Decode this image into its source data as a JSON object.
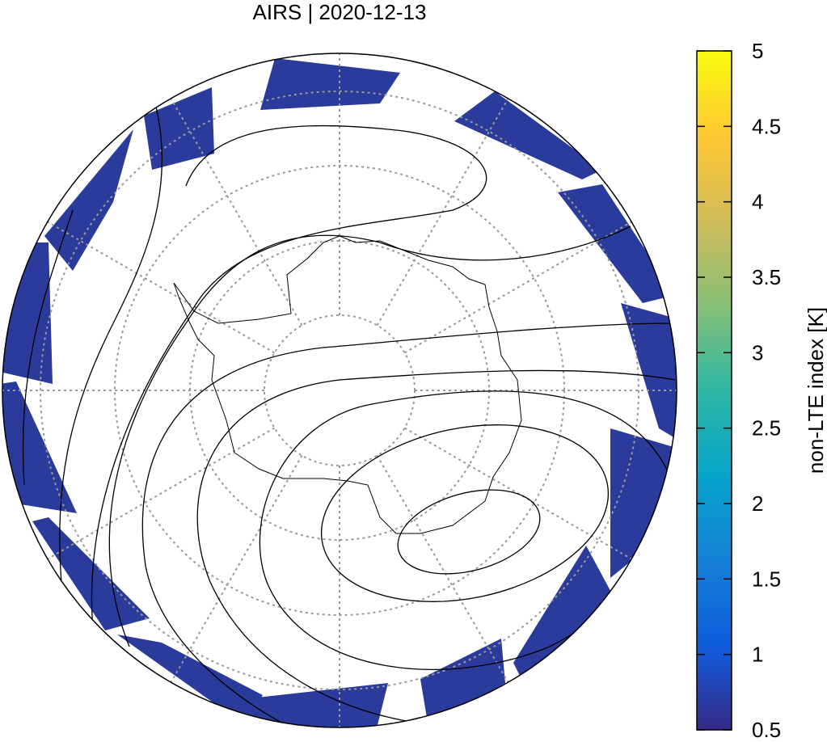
{
  "chart_data": {
    "type": "map",
    "title": "AIRS | 2020-12-13",
    "colorbar": {
      "label": "non-LTE index [K]",
      "lim": [
        0.5,
        5
      ],
      "ticks": [
        0.5,
        1,
        1.5,
        2,
        2.5,
        3,
        3.5,
        4,
        4.5,
        5
      ],
      "colors": [
        "#352a87",
        "#0f5cdd",
        "#1481d6",
        "#06a4ca",
        "#2eb7a4",
        "#87bf77",
        "#d1bb59",
        "#fec832",
        "#f9fb0e"
      ]
    },
    "swath_color": "#2a3b9c"
  }
}
